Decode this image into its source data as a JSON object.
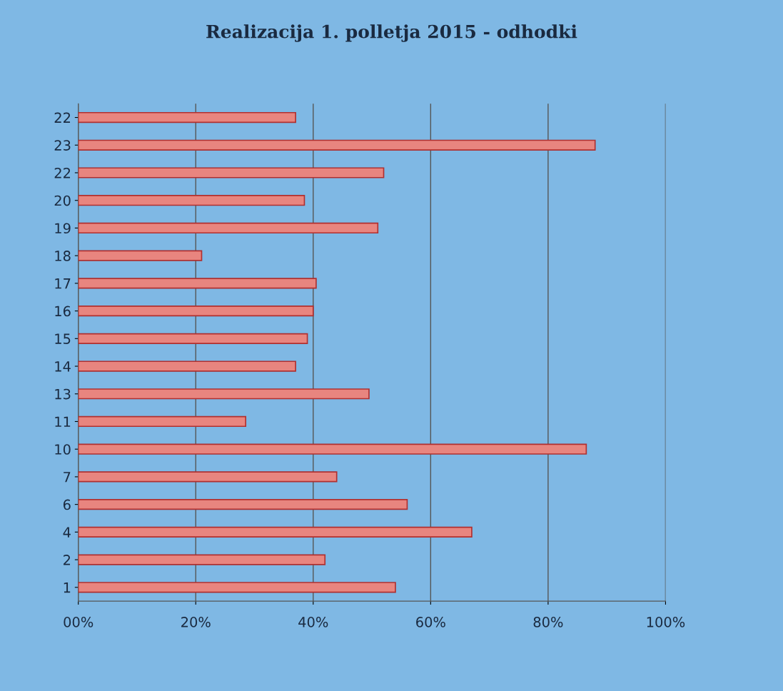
{
  "chart_data": {
    "type": "bar",
    "orientation": "horizontal",
    "title": "Realizacija 1. polletja 2015 - odhodki",
    "categories": [
      "22",
      "23",
      "22",
      "20",
      "19",
      "18",
      "17",
      "16",
      "15",
      "14",
      "13",
      "11",
      "10",
      "7",
      "6",
      "4",
      "2",
      "1"
    ],
    "values": [
      37,
      88,
      52,
      38.5,
      51,
      21,
      40.5,
      40,
      39,
      37,
      49.5,
      28.5,
      86.5,
      44,
      56,
      67,
      42,
      54
    ],
    "color": "#e8857f",
    "xlim": [
      0,
      100
    ],
    "xticks": [
      {
        "value": 0,
        "label": "00%"
      },
      {
        "value": 20,
        "label": "20%"
      },
      {
        "value": 40,
        "label": "40%"
      },
      {
        "value": 60,
        "label": "60%"
      },
      {
        "value": 80,
        "label": "80%"
      },
      {
        "value": 100,
        "label": "100%"
      }
    ],
    "grid": "x",
    "legend": false
  }
}
